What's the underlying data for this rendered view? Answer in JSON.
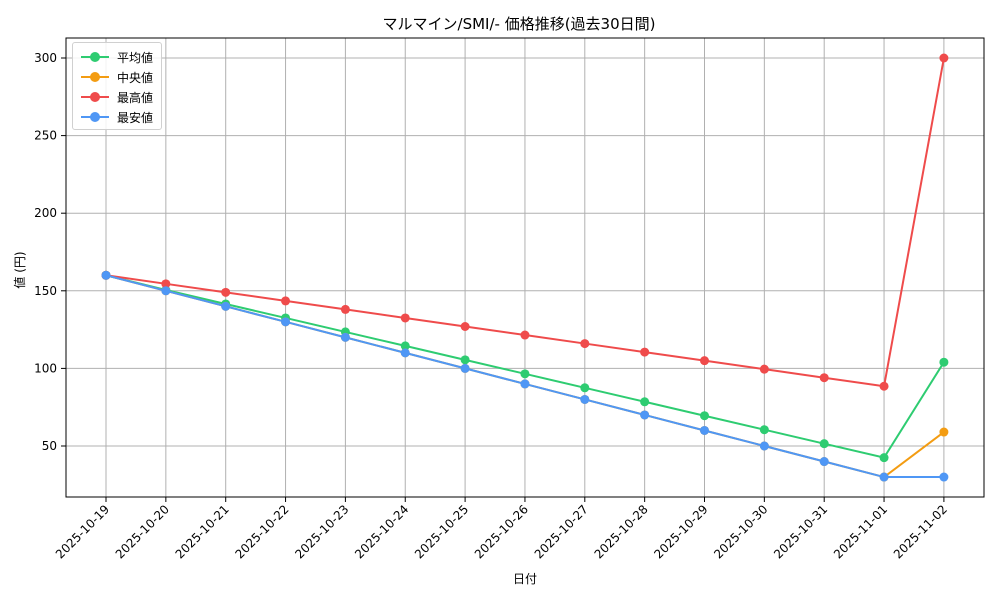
{
  "chart_data": {
    "type": "line",
    "title": "マルマイン/SMI/- 価格推移(過去30日間)",
    "xlabel": "日付",
    "ylabel": "値 (円)",
    "ylim": [
      15,
      313
    ],
    "yticks": [
      50,
      100,
      150,
      200,
      250,
      300
    ],
    "grid": true,
    "legend_position": "upper left",
    "categories": [
      "2025-10-19",
      "2025-10-20",
      "2025-10-21",
      "2025-10-22",
      "2025-10-23",
      "2025-10-24",
      "2025-10-25",
      "2025-10-26",
      "2025-10-27",
      "2025-10-28",
      "2025-10-29",
      "2025-10-30",
      "2025-10-31",
      "2025-11-01",
      "2025-11-02"
    ],
    "series": [
      {
        "name": "平均値",
        "color": "#2ecc71",
        "values": [
          160,
          150.5,
          141.5,
          132.5,
          123.5,
          114.5,
          105.5,
          96.5,
          87.5,
          78.5,
          69.5,
          60.5,
          51.5,
          42.5,
          104
        ]
      },
      {
        "name": "中央値",
        "color": "#f39c12",
        "values": [
          160,
          150,
          140,
          130,
          120,
          110,
          100,
          90,
          80,
          70,
          60,
          50,
          40,
          30,
          59
        ]
      },
      {
        "name": "最高値",
        "color": "#ef4b4b",
        "values": [
          160,
          154.5,
          149,
          143.5,
          138,
          132.5,
          127,
          121.5,
          116,
          110.5,
          105,
          99.5,
          94,
          88.5,
          300
        ]
      },
      {
        "name": "最安値",
        "color": "#4f97f5",
        "values": [
          160,
          150,
          140,
          130,
          120,
          110,
          100,
          90,
          80,
          70,
          60,
          50,
          40,
          30,
          30
        ]
      }
    ]
  },
  "legend": {
    "items": [
      {
        "label": "平均値",
        "color": "#2ecc71"
      },
      {
        "label": "中央値",
        "color": "#f39c12"
      },
      {
        "label": "最高値",
        "color": "#ef4b4b"
      },
      {
        "label": "最安値",
        "color": "#4f97f5"
      }
    ]
  }
}
